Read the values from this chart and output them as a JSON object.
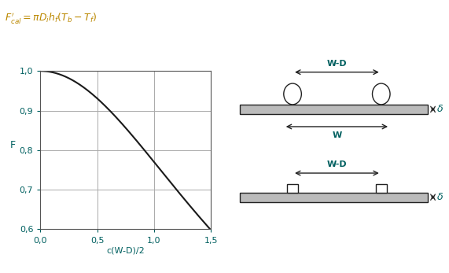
{
  "xlabel": "c(W-D)/2",
  "ylabel": "F",
  "xlim": [
    0.0,
    1.5
  ],
  "ylim": [
    0.6,
    1.0
  ],
  "xticks": [
    0.0,
    0.5,
    1.0,
    1.5
  ],
  "yticks": [
    0.6,
    0.7,
    0.8,
    0.9,
    1.0
  ],
  "xtick_labels": [
    "0,0",
    "0,5",
    "1,0",
    "1,5"
  ],
  "ytick_labels": [
    "0,6",
    "0,7",
    "0,8",
    "0,9",
    "1,0"
  ],
  "curve_color": "#1a1a1a",
  "grid_color": "#aaaaaa",
  "text_color": "#006060",
  "bg_color": "#ffffff",
  "formula_color": "#bb8800",
  "curve_a": 0.299,
  "curve_b": 2.0,
  "plate_color": "#bbbbbb",
  "line_color": "#222222"
}
